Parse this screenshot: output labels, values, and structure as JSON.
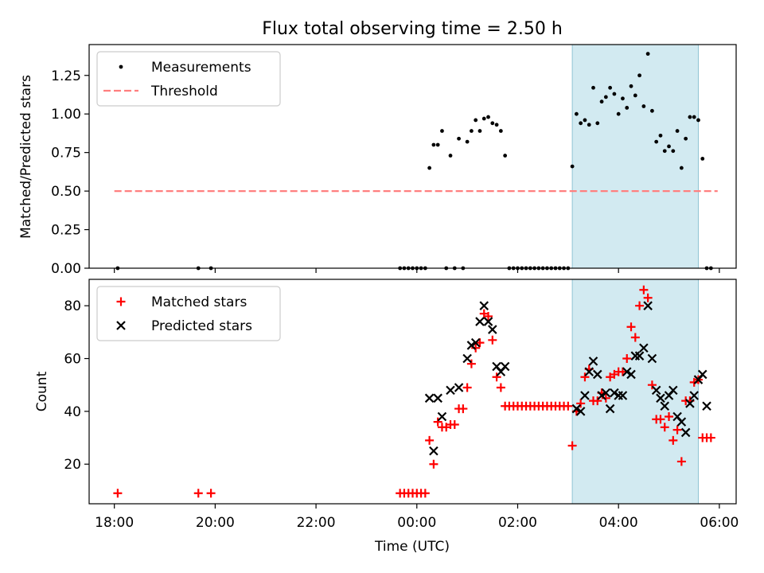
{
  "chart_data": [
    {
      "type": "scatter",
      "title": "Flux total observing time = 2.50 h",
      "xlabel": "",
      "ylabel": "Matched/Predicted stars",
      "xlim": [
        "17:30",
        "06:20"
      ],
      "ylim": [
        0,
        1.45
      ],
      "yticks": [
        "0.00",
        "0.25",
        "0.50",
        "0.75",
        "1.00",
        "1.25"
      ],
      "legend_position": "upper-left",
      "legend": [
        "Measurements",
        "Threshold"
      ],
      "highlight_span": {
        "start": "03:05",
        "end": "05:35",
        "color": "#add8e6"
      },
      "threshold": {
        "name": "Threshold",
        "y": 0.5,
        "x_start": "18:00",
        "x_end": "05:58",
        "color": "#ff7f7f"
      },
      "series": [
        {
          "name": "Measurements",
          "color": "#000000",
          "points": [
            [
              "18:04",
              0
            ],
            [
              "19:40",
              0
            ],
            [
              "19:55",
              0
            ],
            [
              "23:40",
              0
            ],
            [
              "23:45",
              0
            ],
            [
              "23:50",
              0
            ],
            [
              "23:55",
              0
            ],
            [
              "00:00",
              0
            ],
            [
              "00:05",
              0
            ],
            [
              "00:10",
              0
            ],
            [
              "00:15",
              0.65
            ],
            [
              "00:20",
              0.8
            ],
            [
              "00:25",
              0.8
            ],
            [
              "00:30",
              0.89
            ],
            [
              "00:35",
              0
            ],
            [
              "00:40",
              0.73
            ],
            [
              "00:45",
              0
            ],
            [
              "00:50",
              0.84
            ],
            [
              "00:55",
              0
            ],
            [
              "01:00",
              0.82
            ],
            [
              "01:05",
              0.89
            ],
            [
              "01:10",
              0.96
            ],
            [
              "01:15",
              0.89
            ],
            [
              "01:20",
              0.97
            ],
            [
              "01:25",
              0.98
            ],
            [
              "01:30",
              0.94
            ],
            [
              "01:35",
              0.93
            ],
            [
              "01:40",
              0.89
            ],
            [
              "01:45",
              0.73
            ],
            [
              "01:50",
              0
            ],
            [
              "01:55",
              0
            ],
            [
              "02:00",
              0
            ],
            [
              "02:05",
              0
            ],
            [
              "02:10",
              0
            ],
            [
              "02:15",
              0
            ],
            [
              "02:20",
              0
            ],
            [
              "02:25",
              0
            ],
            [
              "02:30",
              0
            ],
            [
              "02:35",
              0
            ],
            [
              "02:40",
              0
            ],
            [
              "02:45",
              0
            ],
            [
              "02:50",
              0
            ],
            [
              "02:55",
              0
            ],
            [
              "03:00",
              0
            ],
            [
              "03:05",
              0.66
            ],
            [
              "03:10",
              1.0
            ],
            [
              "03:15",
              0.94
            ],
            [
              "03:20",
              0.96
            ],
            [
              "03:25",
              0.93
            ],
            [
              "03:30",
              1.17
            ],
            [
              "03:35",
              0.94
            ],
            [
              "03:40",
              1.08
            ],
            [
              "03:45",
              1.11
            ],
            [
              "03:50",
              1.17
            ],
            [
              "03:55",
              1.13
            ],
            [
              "04:00",
              1.0
            ],
            [
              "04:05",
              1.1
            ],
            [
              "04:10",
              1.04
            ],
            [
              "04:15",
              1.18
            ],
            [
              "04:20",
              1.12
            ],
            [
              "04:25",
              1.25
            ],
            [
              "04:30",
              1.05
            ],
            [
              "04:35",
              1.39
            ],
            [
              "04:40",
              1.02
            ],
            [
              "04:45",
              0.82
            ],
            [
              "04:50",
              0.86
            ],
            [
              "04:55",
              0.76
            ],
            [
              "05:00",
              0.79
            ],
            [
              "05:05",
              0.76
            ],
            [
              "05:10",
              0.89
            ],
            [
              "05:15",
              0.65
            ],
            [
              "05:20",
              0.84
            ],
            [
              "05:25",
              0.98
            ],
            [
              "05:30",
              0.98
            ],
            [
              "05:35",
              0.96
            ],
            [
              "05:40",
              0.71
            ],
            [
              "05:45",
              0
            ],
            [
              "05:50",
              0
            ]
          ]
        }
      ]
    },
    {
      "type": "scatter",
      "title": "",
      "xlabel": "Time (UTC)",
      "ylabel": "Count",
      "xlim": [
        "17:30",
        "06:20"
      ],
      "ylim": [
        5,
        90
      ],
      "xticks": [
        "18:00",
        "20:00",
        "22:00",
        "00:00",
        "02:00",
        "04:00",
        "06:00"
      ],
      "yticks": [
        "20",
        "40",
        "60",
        "80"
      ],
      "legend_position": "upper-left",
      "legend": [
        "Matched stars",
        "Predicted stars"
      ],
      "highlight_span": {
        "start": "03:05",
        "end": "05:35",
        "color": "#add8e6"
      },
      "series": [
        {
          "name": "Matched stars",
          "marker": "plus",
          "color": "#ff0000",
          "points": [
            [
              "18:04",
              9
            ],
            [
              "19:40",
              9
            ],
            [
              "19:55",
              9
            ],
            [
              "23:40",
              9
            ],
            [
              "23:45",
              9
            ],
            [
              "23:50",
              9
            ],
            [
              "23:55",
              9
            ],
            [
              "00:00",
              9
            ],
            [
              "00:05",
              9
            ],
            [
              "00:10",
              9
            ],
            [
              "00:15",
              29
            ],
            [
              "00:20",
              20
            ],
            [
              "00:25",
              36
            ],
            [
              "00:30",
              34
            ],
            [
              "00:35",
              34
            ],
            [
              "00:40",
              35
            ],
            [
              "00:45",
              35
            ],
            [
              "00:50",
              41
            ],
            [
              "00:55",
              41
            ],
            [
              "01:00",
              49
            ],
            [
              "01:05",
              58
            ],
            [
              "01:10",
              64
            ],
            [
              "01:15",
              66
            ],
            [
              "01:20",
              77
            ],
            [
              "01:25",
              76
            ],
            [
              "01:30",
              67
            ],
            [
              "01:35",
              53
            ],
            [
              "01:40",
              49
            ],
            [
              "01:45",
              42
            ],
            [
              "01:50",
              42
            ],
            [
              "01:55",
              42
            ],
            [
              "02:00",
              42
            ],
            [
              "02:05",
              42
            ],
            [
              "02:10",
              42
            ],
            [
              "02:15",
              42
            ],
            [
              "02:20",
              42
            ],
            [
              "02:25",
              42
            ],
            [
              "02:30",
              42
            ],
            [
              "02:35",
              42
            ],
            [
              "02:40",
              42
            ],
            [
              "02:45",
              42
            ],
            [
              "02:50",
              42
            ],
            [
              "02:55",
              42
            ],
            [
              "03:00",
              42
            ],
            [
              "03:05",
              27
            ],
            [
              "03:10",
              40
            ],
            [
              "03:15",
              43
            ],
            [
              "03:20",
              53
            ],
            [
              "03:25",
              56
            ],
            [
              "03:30",
              44
            ],
            [
              "03:35",
              44
            ],
            [
              "03:40",
              47
            ],
            [
              "03:45",
              45
            ],
            [
              "03:50",
              53
            ],
            [
              "03:55",
              54
            ],
            [
              "04:00",
              55
            ],
            [
              "04:05",
              55
            ],
            [
              "04:10",
              60
            ],
            [
              "04:15",
              72
            ],
            [
              "04:20",
              68
            ],
            [
              "04:25",
              80
            ],
            [
              "04:30",
              86
            ],
            [
              "04:35",
              83
            ],
            [
              "04:40",
              50
            ],
            [
              "04:45",
              37
            ],
            [
              "04:50",
              37
            ],
            [
              "04:55",
              34
            ],
            [
              "05:00",
              38
            ],
            [
              "05:05",
              29
            ],
            [
              "05:10",
              33
            ],
            [
              "05:15",
              21
            ],
            [
              "05:20",
              44
            ],
            [
              "05:25",
              44
            ],
            [
              "05:30",
              51
            ],
            [
              "05:35",
              52
            ],
            [
              "05:40",
              30
            ],
            [
              "05:45",
              30
            ],
            [
              "05:50",
              30
            ]
          ]
        },
        {
          "name": "Predicted stars",
          "marker": "x",
          "color": "#000000",
          "points": [
            [
              "00:15",
              45
            ],
            [
              "00:20",
              25
            ],
            [
              "00:25",
              45
            ],
            [
              "00:30",
              38
            ],
            [
              "00:40",
              48
            ],
            [
              "00:50",
              49
            ],
            [
              "01:00",
              60
            ],
            [
              "01:05",
              65
            ],
            [
              "01:10",
              66
            ],
            [
              "01:15",
              74
            ],
            [
              "01:20",
              80
            ],
            [
              "01:25",
              74
            ],
            [
              "01:30",
              71
            ],
            [
              "01:35",
              57
            ],
            [
              "01:40",
              55
            ],
            [
              "01:45",
              57
            ],
            [
              "03:10",
              41
            ],
            [
              "03:15",
              40
            ],
            [
              "03:20",
              46
            ],
            [
              "03:25",
              55
            ],
            [
              "03:30",
              59
            ],
            [
              "03:35",
              54
            ],
            [
              "03:40",
              46
            ],
            [
              "03:45",
              47
            ],
            [
              "03:50",
              41
            ],
            [
              "03:55",
              47
            ],
            [
              "04:00",
              46
            ],
            [
              "04:05",
              46
            ],
            [
              "04:10",
              55
            ],
            [
              "04:15",
              54
            ],
            [
              "04:20",
              61
            ],
            [
              "04:25",
              61
            ],
            [
              "04:30",
              64
            ],
            [
              "04:35",
              80
            ],
            [
              "04:40",
              60
            ],
            [
              "04:45",
              48
            ],
            [
              "04:50",
              45
            ],
            [
              "04:55",
              42
            ],
            [
              "05:00",
              46
            ],
            [
              "05:05",
              48
            ],
            [
              "05:10",
              38
            ],
            [
              "05:15",
              36
            ],
            [
              "05:20",
              32
            ],
            [
              "05:25",
              43
            ],
            [
              "05:30",
              46
            ],
            [
              "05:35",
              52
            ],
            [
              "05:40",
              54
            ],
            [
              "05:45",
              42
            ]
          ]
        }
      ]
    }
  ]
}
